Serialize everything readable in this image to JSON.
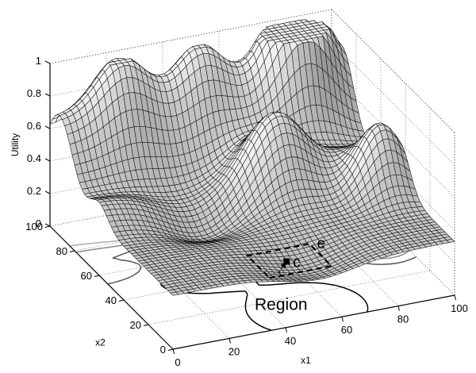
{
  "chart_data": {
    "type": "surface",
    "title": "",
    "xlabel": "x1",
    "ylabel": "x2",
    "zlabel": "Utility",
    "xlim": [
      0,
      100
    ],
    "ylim": [
      0,
      100
    ],
    "zlim": [
      0,
      1
    ],
    "x_ticks": [
      "0",
      "20",
      "40",
      "60",
      "80",
      "100"
    ],
    "y_ticks": [
      "0",
      "20",
      "40",
      "60",
      "80",
      "100"
    ],
    "z_ticks": [
      "0",
      "0.2",
      "0.4",
      "0.6",
      "0.8",
      "1"
    ],
    "grid": true,
    "contours_projected_on_floor": true,
    "surface_grid_resolution": 50,
    "surface_components": [
      {
        "kind": "ridge",
        "x1": [
          0,
          100
        ],
        "x2": [
          92,
          92
        ],
        "width": 14,
        "height": 0.4
      },
      {
        "kind": "ridge",
        "x1": [
          0,
          100
        ],
        "x2": [
          60,
          60
        ],
        "width": 10,
        "height": 0.12
      },
      {
        "kind": "peak",
        "x1": 22,
        "x2": 94,
        "width": 12,
        "height": 0.3
      },
      {
        "kind": "peak",
        "x1": 50,
        "x2": 94,
        "width": 11,
        "height": 0.28
      },
      {
        "kind": "peak",
        "x1": 83,
        "x2": 90,
        "width": 13,
        "height": 0.63
      },
      {
        "kind": "peak",
        "x1": 63,
        "x2": 58,
        "width": 13,
        "height": 0.32
      },
      {
        "kind": "peak",
        "x1": 93,
        "x2": 44,
        "width": 11,
        "height": 0.4
      },
      {
        "kind": "peak",
        "x1": 60,
        "x2": 70,
        "width": 11,
        "height": 0.08
      },
      {
        "kind": "valley",
        "x1": 32,
        "x2": 55,
        "width": 16,
        "height": -0.18
      },
      {
        "kind": "valley",
        "x1": 52,
        "x2": 10,
        "width": 18,
        "height": -0.1
      }
    ],
    "annotations": [
      {
        "label": "Region",
        "x1": 36,
        "x2": 16
      },
      {
        "label": "c",
        "x1": 60,
        "x2": 45,
        "marker": "square"
      },
      {
        "label": "e",
        "x1": 73,
        "x2": 50
      },
      {
        "label": "",
        "kind": "dashed-box",
        "x1": [
          50,
          72
        ],
        "x2": [
          36,
          54
        ]
      },
      {
        "label": "",
        "kind": "arrow",
        "from": [
          54,
          38
        ],
        "to": [
          60,
          45
        ]
      }
    ]
  }
}
